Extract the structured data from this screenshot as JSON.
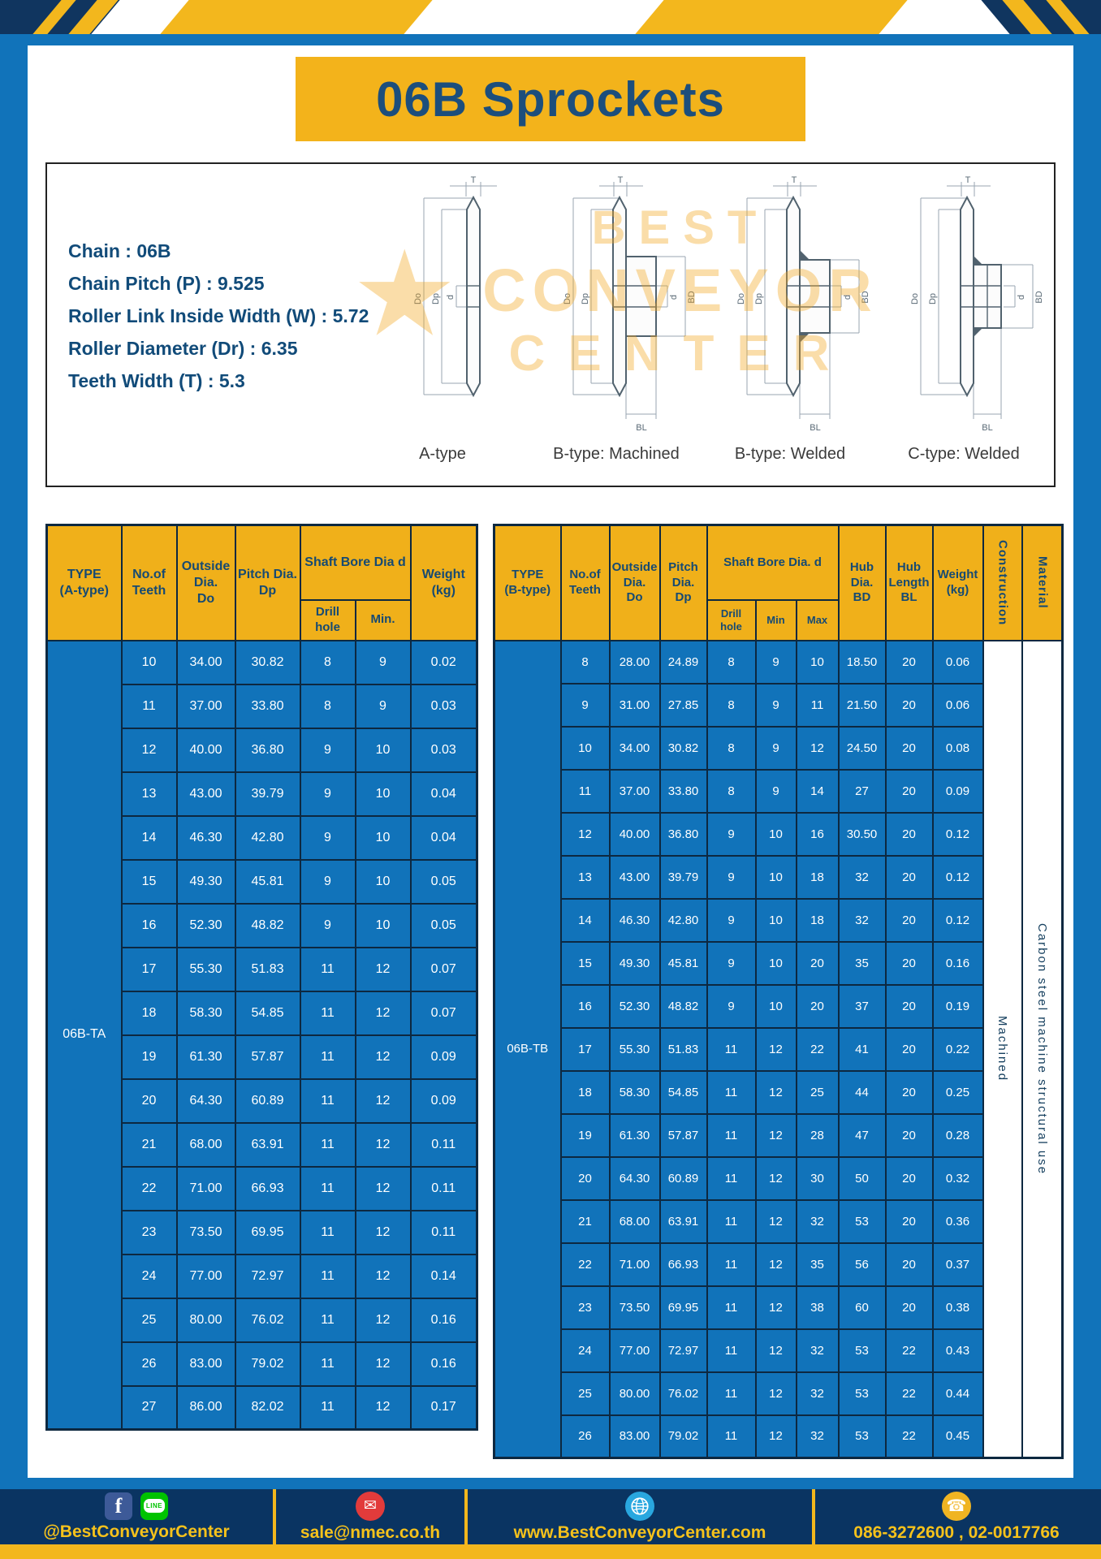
{
  "page": {
    "title": "06B Sprockets"
  },
  "specs": {
    "lines": [
      "Chain : 06B",
      "Chain Pitch (P) : 9.525",
      "Roller Link Inside Width (W) : 5.72",
      "Roller Diameter (Dr) : 6.35",
      "Teeth Width (T) : 5.3"
    ]
  },
  "watermark": {
    "star": "★",
    "line1": "BEST",
    "line2": "CONVEYOR",
    "line3": "CENTER"
  },
  "drawings": [
    {
      "caption": "A-type",
      "dims": {
        "t": "T",
        "do": "Do",
        "dp": "Dp",
        "d": "d"
      }
    },
    {
      "caption": "B-type: Machined",
      "dims": {
        "t": "T",
        "do": "Do",
        "dp": "Dp",
        "d": "d",
        "bd": "BD",
        "bl": "BL"
      }
    },
    {
      "caption": "B-type: Welded",
      "dims": {
        "t": "T",
        "do": "Do",
        "dp": "Dp",
        "d": "d",
        "bd": "BD",
        "bl": "BL"
      }
    },
    {
      "caption": "C-type: Welded",
      "dims": {
        "t": "T",
        "do": "Do",
        "dp": "Dp",
        "d": "d",
        "bd": "BD",
        "bl": "BL"
      }
    }
  ],
  "tables": {
    "left": {
      "headers": {
        "type": "TYPE\n(A-type)",
        "teeth": "No.of\nTeeth",
        "outside": "Outside\nDia.\nDo",
        "pitch": "Pitch Dia.\nDp",
        "shaft": "Shaft Bore Dia d",
        "drill": "Drill hole",
        "min": "Min.",
        "weight": "Weight\n(kg)"
      },
      "lead": [
        {
          "text": "06B-TA",
          "class": "type-cell",
          "name": "type-cell-a"
        }
      ],
      "rows": [
        [
          "10",
          "34.00",
          "30.82",
          "8",
          "9",
          "0.02"
        ],
        [
          "11",
          "37.00",
          "33.80",
          "8",
          "9",
          "0.03"
        ],
        [
          "12",
          "40.00",
          "36.80",
          "9",
          "10",
          "0.03"
        ],
        [
          "13",
          "43.00",
          "39.79",
          "9",
          "10",
          "0.04"
        ],
        [
          "14",
          "46.30",
          "42.80",
          "9",
          "10",
          "0.04"
        ],
        [
          "15",
          "49.30",
          "45.81",
          "9",
          "10",
          "0.05"
        ],
        [
          "16",
          "52.30",
          "48.82",
          "9",
          "10",
          "0.05"
        ],
        [
          "17",
          "55.30",
          "51.83",
          "11",
          "12",
          "0.07"
        ],
        [
          "18",
          "58.30",
          "54.85",
          "11",
          "12",
          "0.07"
        ],
        [
          "19",
          "61.30",
          "57.87",
          "11",
          "12",
          "0.09"
        ],
        [
          "20",
          "64.30",
          "60.89",
          "11",
          "12",
          "0.09"
        ],
        [
          "21",
          "68.00",
          "63.91",
          "11",
          "12",
          "0.11"
        ],
        [
          "22",
          "71.00",
          "66.93",
          "11",
          "12",
          "0.11"
        ],
        [
          "23",
          "73.50",
          "69.95",
          "11",
          "12",
          "0.11"
        ],
        [
          "24",
          "77.00",
          "72.97",
          "11",
          "12",
          "0.14"
        ],
        [
          "25",
          "80.00",
          "76.02",
          "11",
          "12",
          "0.16"
        ],
        [
          "26",
          "83.00",
          "79.02",
          "11",
          "12",
          "0.16"
        ],
        [
          "27",
          "86.00",
          "82.02",
          "11",
          "12",
          "0.17"
        ]
      ]
    },
    "right": {
      "headers": {
        "type": "TYPE\n(B-type)",
        "teeth": "No.of\nTeeth",
        "outside": "Outside\nDia.\nDo",
        "pitch": "Pitch\nDia.\nDp",
        "shaft": "Shaft Bore Dia. d",
        "drill": "Drill hole",
        "min": "Min",
        "max": "Max",
        "hub_dia": "Hub\nDia.\nBD",
        "hub_len": "Hub\nLength\nBL",
        "weight": "Weight\n(kg)",
        "construction": "Construction",
        "material": "Material"
      },
      "lead": [
        {
          "text": "06B-TB",
          "class": "type-cell",
          "name": "type-cell-b"
        }
      ],
      "trail": [
        {
          "text": "Machined",
          "class": "vcell",
          "vertical": true,
          "name": "construction-cell"
        },
        {
          "text": "Carbon steel machine structural use",
          "class": "vcell",
          "vertical": true,
          "name": "material-cell"
        }
      ],
      "rows": [
        [
          "8",
          "28.00",
          "24.89",
          "8",
          "9",
          "10",
          "18.50",
          "20",
          "0.06"
        ],
        [
          "9",
          "31.00",
          "27.85",
          "8",
          "9",
          "11",
          "21.50",
          "20",
          "0.06"
        ],
        [
          "10",
          "34.00",
          "30.82",
          "8",
          "9",
          "12",
          "24.50",
          "20",
          "0.08"
        ],
        [
          "11",
          "37.00",
          "33.80",
          "8",
          "9",
          "14",
          "27",
          "20",
          "0.09"
        ],
        [
          "12",
          "40.00",
          "36.80",
          "9",
          "10",
          "16",
          "30.50",
          "20",
          "0.12"
        ],
        [
          "13",
          "43.00",
          "39.79",
          "9",
          "10",
          "18",
          "32",
          "20",
          "0.12"
        ],
        [
          "14",
          "46.30",
          "42.80",
          "9",
          "10",
          "18",
          "32",
          "20",
          "0.12"
        ],
        [
          "15",
          "49.30",
          "45.81",
          "9",
          "10",
          "20",
          "35",
          "20",
          "0.16"
        ],
        [
          "16",
          "52.30",
          "48.82",
          "9",
          "10",
          "20",
          "37",
          "20",
          "0.19"
        ],
        [
          "17",
          "55.30",
          "51.83",
          "11",
          "12",
          "22",
          "41",
          "20",
          "0.22"
        ],
        [
          "18",
          "58.30",
          "54.85",
          "11",
          "12",
          "25",
          "44",
          "20",
          "0.25"
        ],
        [
          "19",
          "61.30",
          "57.87",
          "11",
          "12",
          "28",
          "47",
          "20",
          "0.28"
        ],
        [
          "20",
          "64.30",
          "60.89",
          "11",
          "12",
          "30",
          "50",
          "20",
          "0.32"
        ],
        [
          "21",
          "68.00",
          "63.91",
          "11",
          "12",
          "32",
          "53",
          "20",
          "0.36"
        ],
        [
          "22",
          "71.00",
          "66.93",
          "11",
          "12",
          "35",
          "56",
          "20",
          "0.37"
        ],
        [
          "23",
          "73.50",
          "69.95",
          "11",
          "12",
          "38",
          "60",
          "20",
          "0.38"
        ],
        [
          "24",
          "77.00",
          "72.97",
          "11",
          "12",
          "32",
          "53",
          "22",
          "0.43"
        ],
        [
          "25",
          "80.00",
          "76.02",
          "11",
          "12",
          "32",
          "53",
          "22",
          "0.44"
        ],
        [
          "26",
          "83.00",
          "79.02",
          "11",
          "12",
          "32",
          "53",
          "22",
          "0.45"
        ]
      ]
    }
  },
  "footer": {
    "social": "@BestConveyorCenter",
    "email": "sale@nmec.co.th",
    "website": "www.BestConveyorCenter.com",
    "phone": "086-3272600 , 02-0017766",
    "facebook_glyph": "f",
    "line_badge": "LINE",
    "mail_glyph": "✉",
    "phone_glyph": "☎"
  },
  "colors": {
    "page_blue": "#1173ba",
    "accent_yellow": "#f3b71d",
    "header_yellow": "#f0b01a",
    "footer_navy": "#0a3462",
    "title_text": "#1c4e7c"
  }
}
